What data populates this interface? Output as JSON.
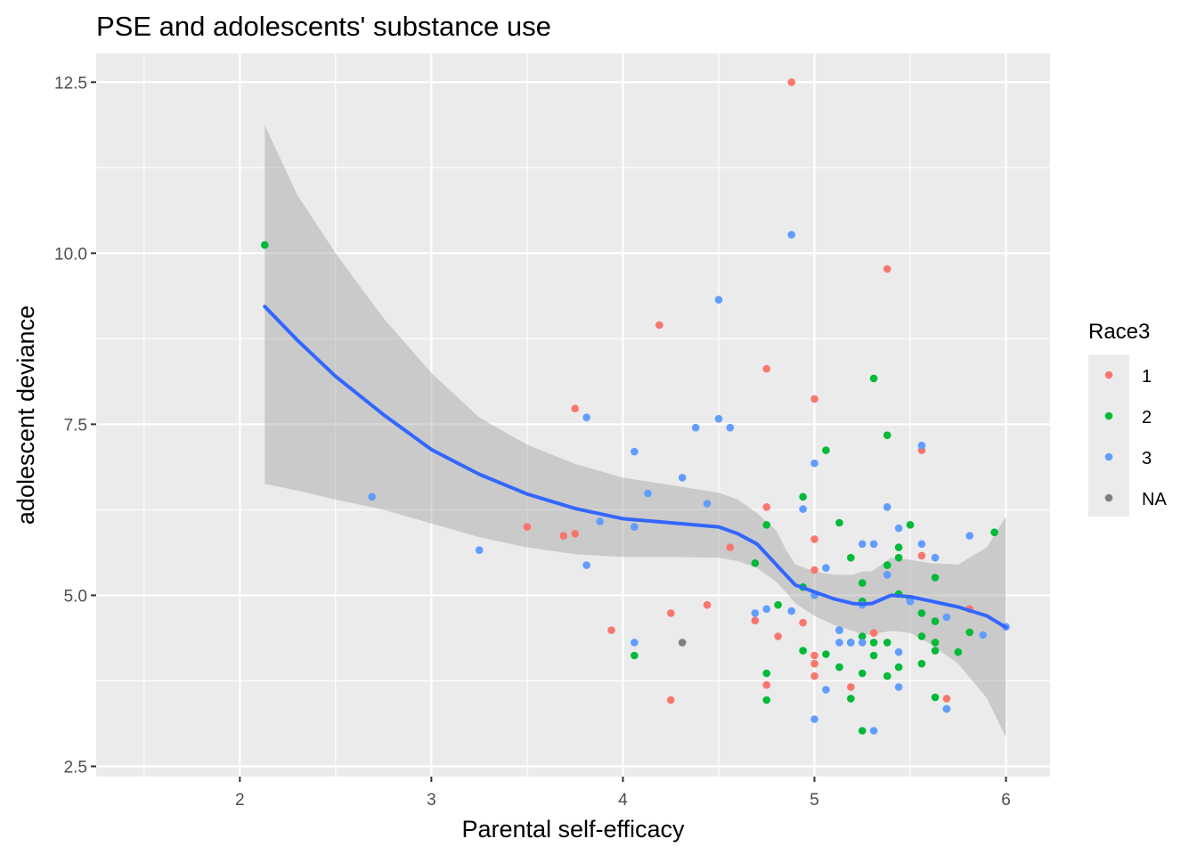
{
  "chart_data": {
    "type": "scatter",
    "title": "PSE and adolescents' substance use",
    "xlabel": "Parental self-efficacy",
    "ylabel": "adolescent deviance",
    "xlim": [
      1.25,
      6.23
    ],
    "ylim": [
      2.35,
      12.92
    ],
    "x_ticks": [
      2,
      3,
      4,
      5,
      6
    ],
    "x_tick_labels": [
      "2",
      "3",
      "4",
      "5",
      "6"
    ],
    "y_ticks": [
      2.5,
      5.0,
      7.5,
      10.0,
      12.5
    ],
    "y_tick_labels": [
      "2.5",
      "5.0",
      "7.5",
      "10.0",
      "12.5"
    ],
    "grid": true,
    "legend": {
      "title": "Race3",
      "placement": "right",
      "entries": [
        {
          "label": "1",
          "color": "#F8766D"
        },
        {
          "label": "2",
          "color": "#00BA38"
        },
        {
          "label": "3",
          "color": "#619CFF"
        },
        {
          "label": "NA",
          "color": "#7F7F7F"
        }
      ]
    },
    "series": [
      {
        "name": "1",
        "color": "#F8766D",
        "points": [
          [
            3.5,
            6.0
          ],
          [
            3.69,
            5.87
          ],
          [
            3.75,
            5.9
          ],
          [
            3.75,
            7.73
          ],
          [
            3.94,
            4.49
          ],
          [
            4.19,
            8.95
          ],
          [
            4.25,
            4.74
          ],
          [
            4.25,
            3.47
          ],
          [
            4.44,
            4.86
          ],
          [
            4.56,
            5.7
          ],
          [
            4.69,
            4.63
          ],
          [
            4.75,
            8.31
          ],
          [
            4.75,
            6.29
          ],
          [
            4.75,
            3.69
          ],
          [
            4.81,
            4.4
          ],
          [
            4.88,
            12.5
          ],
          [
            4.94,
            4.6
          ],
          [
            5.0,
            7.87
          ],
          [
            5.0,
            5.82
          ],
          [
            5.0,
            5.37
          ],
          [
            5.0,
            4.12
          ],
          [
            5.0,
            4.0
          ],
          [
            5.0,
            3.82
          ],
          [
            5.19,
            3.66
          ],
          [
            5.31,
            4.45
          ],
          [
            5.38,
            9.77
          ],
          [
            5.56,
            7.12
          ],
          [
            5.56,
            5.58
          ],
          [
            5.69,
            3.49
          ],
          [
            5.81,
            4.8
          ]
        ]
      },
      {
        "name": "2",
        "color": "#00BA38",
        "points": [
          [
            2.13,
            10.12
          ],
          [
            4.06,
            4.12
          ],
          [
            4.69,
            5.47
          ],
          [
            4.75,
            6.03
          ],
          [
            4.75,
            3.86
          ],
          [
            4.75,
            3.47
          ],
          [
            4.81,
            4.86
          ],
          [
            4.94,
            6.44
          ],
          [
            4.94,
            5.12
          ],
          [
            4.94,
            4.19
          ],
          [
            5.06,
            7.12
          ],
          [
            5.06,
            4.14
          ],
          [
            5.13,
            6.06
          ],
          [
            5.13,
            4.49
          ],
          [
            5.13,
            3.95
          ],
          [
            5.19,
            5.55
          ],
          [
            5.19,
            4.31
          ],
          [
            5.19,
            3.49
          ],
          [
            5.25,
            5.18
          ],
          [
            5.25,
            4.91
          ],
          [
            5.25,
            4.4
          ],
          [
            5.25,
            3.86
          ],
          [
            5.25,
            3.02
          ],
          [
            5.31,
            8.17
          ],
          [
            5.31,
            4.31
          ],
          [
            5.31,
            4.12
          ],
          [
            5.38,
            7.34
          ],
          [
            5.38,
            5.44
          ],
          [
            5.38,
            4.31
          ],
          [
            5.38,
            3.82
          ],
          [
            5.44,
            5.7
          ],
          [
            5.44,
            5.55
          ],
          [
            5.44,
            5.02
          ],
          [
            5.44,
            3.95
          ],
          [
            5.5,
            6.03
          ],
          [
            5.5,
            4.95
          ],
          [
            5.56,
            4.74
          ],
          [
            5.56,
            4.4
          ],
          [
            5.56,
            4.0
          ],
          [
            5.63,
            5.26
          ],
          [
            5.63,
            4.62
          ],
          [
            5.63,
            4.31
          ],
          [
            5.63,
            4.19
          ],
          [
            5.63,
            3.51
          ],
          [
            5.69,
            3.34
          ],
          [
            5.75,
            4.17
          ],
          [
            5.81,
            4.46
          ],
          [
            5.94,
            5.92
          ]
        ]
      },
      {
        "name": "3",
        "color": "#619CFF",
        "points": [
          [
            2.69,
            6.44
          ],
          [
            3.25,
            5.66
          ],
          [
            3.81,
            7.6
          ],
          [
            3.81,
            5.44
          ],
          [
            3.88,
            6.08
          ],
          [
            4.06,
            7.1
          ],
          [
            4.06,
            6.0
          ],
          [
            4.06,
            4.31
          ],
          [
            4.13,
            6.49
          ],
          [
            4.31,
            6.72
          ],
          [
            4.38,
            7.45
          ],
          [
            4.44,
            6.34
          ],
          [
            4.5,
            9.32
          ],
          [
            4.5,
            7.58
          ],
          [
            4.56,
            7.45
          ],
          [
            4.69,
            4.74
          ],
          [
            4.75,
            4.8
          ],
          [
            4.88,
            10.27
          ],
          [
            4.88,
            4.77
          ],
          [
            4.94,
            6.26
          ],
          [
            5.0,
            6.93
          ],
          [
            5.0,
            5.0
          ],
          [
            5.06,
            5.4
          ],
          [
            5.06,
            3.62
          ],
          [
            5.13,
            4.49
          ],
          [
            5.13,
            4.31
          ],
          [
            5.19,
            4.31
          ],
          [
            5.25,
            5.75
          ],
          [
            5.25,
            4.86
          ],
          [
            5.25,
            4.31
          ],
          [
            5.31,
            5.75
          ],
          [
            5.31,
            3.02
          ],
          [
            5.38,
            6.29
          ],
          [
            5.38,
            5.3
          ],
          [
            5.44,
            5.98
          ],
          [
            5.44,
            4.17
          ],
          [
            5.44,
            3.66
          ],
          [
            5.5,
            4.91
          ],
          [
            5.56,
            7.19
          ],
          [
            5.56,
            5.75
          ],
          [
            5.63,
            5.55
          ],
          [
            5.69,
            4.68
          ],
          [
            5.69,
            3.34
          ],
          [
            5.81,
            5.87
          ],
          [
            5.88,
            4.42
          ],
          [
            6.0,
            4.54
          ],
          [
            5.0,
            3.19
          ]
        ]
      },
      {
        "name": "NA",
        "color": "#7F7F7F",
        "points": [
          [
            4.31,
            4.31
          ]
        ]
      }
    ],
    "smooth": {
      "color": "#3366FF",
      "band_color": "#999999",
      "x": [
        2.13,
        2.3,
        2.5,
        2.75,
        3.0,
        3.25,
        3.5,
        3.75,
        4.0,
        4.25,
        4.5,
        4.6,
        4.7,
        4.8,
        4.85,
        4.9,
        5.0,
        5.1,
        5.2,
        5.25,
        5.3,
        5.4,
        5.5,
        5.6,
        5.75,
        5.9,
        6.0
      ],
      "y": [
        9.22,
        8.73,
        8.2,
        7.64,
        7.13,
        6.77,
        6.48,
        6.27,
        6.12,
        6.06,
        6.0,
        5.9,
        5.75,
        5.45,
        5.3,
        5.15,
        5.05,
        4.95,
        4.88,
        4.87,
        4.88,
        5.0,
        4.98,
        4.92,
        4.83,
        4.7,
        4.53
      ],
      "lower": [
        6.63,
        6.53,
        6.4,
        6.25,
        6.05,
        5.85,
        5.7,
        5.6,
        5.56,
        5.56,
        5.55,
        5.5,
        5.4,
        5.2,
        5.05,
        4.88,
        4.7,
        4.57,
        4.48,
        4.43,
        4.43,
        4.48,
        4.45,
        4.3,
        4.0,
        3.5,
        2.92
      ],
      "upper": [
        11.87,
        10.85,
        10.0,
        9.05,
        8.25,
        7.6,
        7.2,
        6.92,
        6.72,
        6.61,
        6.5,
        6.4,
        6.2,
        5.95,
        5.67,
        5.45,
        5.35,
        5.3,
        5.3,
        5.35,
        5.35,
        5.55,
        5.52,
        5.47,
        5.45,
        5.7,
        6.15
      ]
    }
  }
}
